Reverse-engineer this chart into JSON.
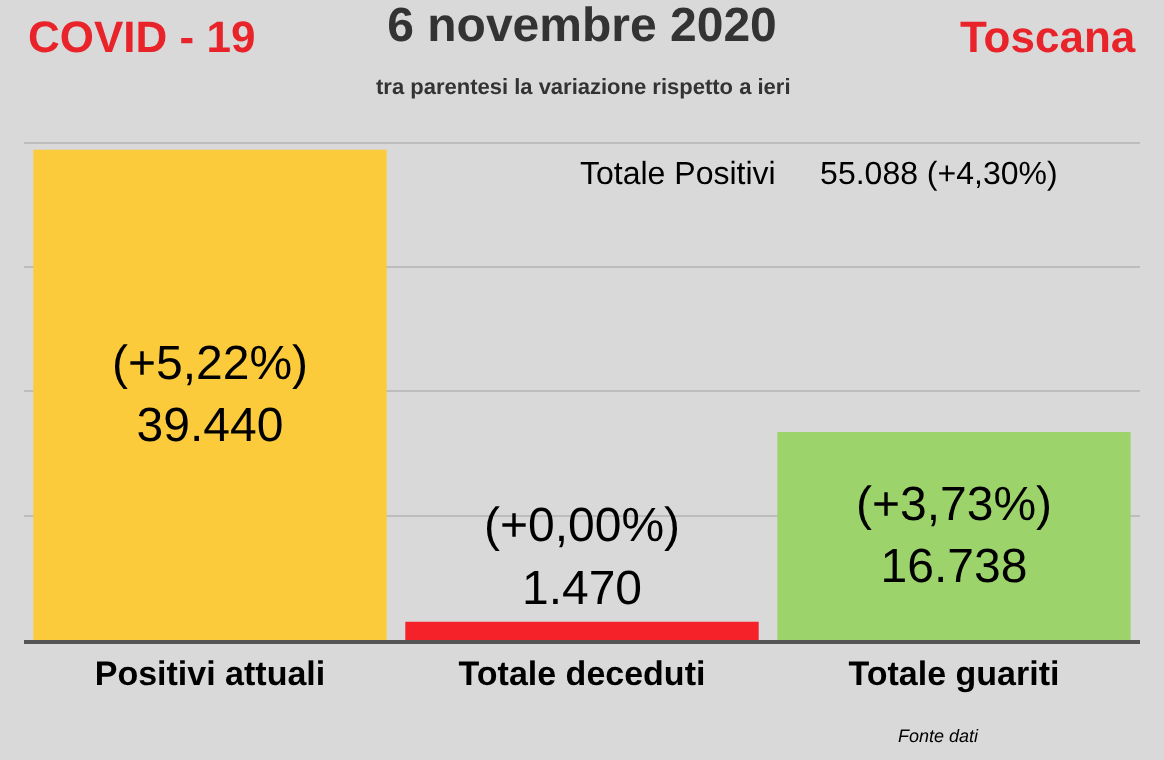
{
  "chart_data": {
    "type": "bar",
    "title": "6 novembre 2020",
    "subtitle": "tra parentesi la variazione rispetto a ieri",
    "categories": [
      "Positivi attuali",
      "Totale deceduti",
      "Totale guariti"
    ],
    "values": [
      39440,
      1470,
      16738
    ],
    "colors": [
      "#fbcb3b",
      "#f5222a",
      "#9cd46b"
    ],
    "value_labels": [
      "(+5,22%)\n39.440",
      "(+0,00%)\n1.470",
      "(+3,73%)\n16.738"
    ],
    "grid": "y",
    "tick_labels": "x",
    "legend": false,
    "annotations": [
      "COVID - 19",
      "Toscana",
      "Totale Positivi     55.088 (+4,30%)",
      "Fonte dati"
    ]
  }
}
